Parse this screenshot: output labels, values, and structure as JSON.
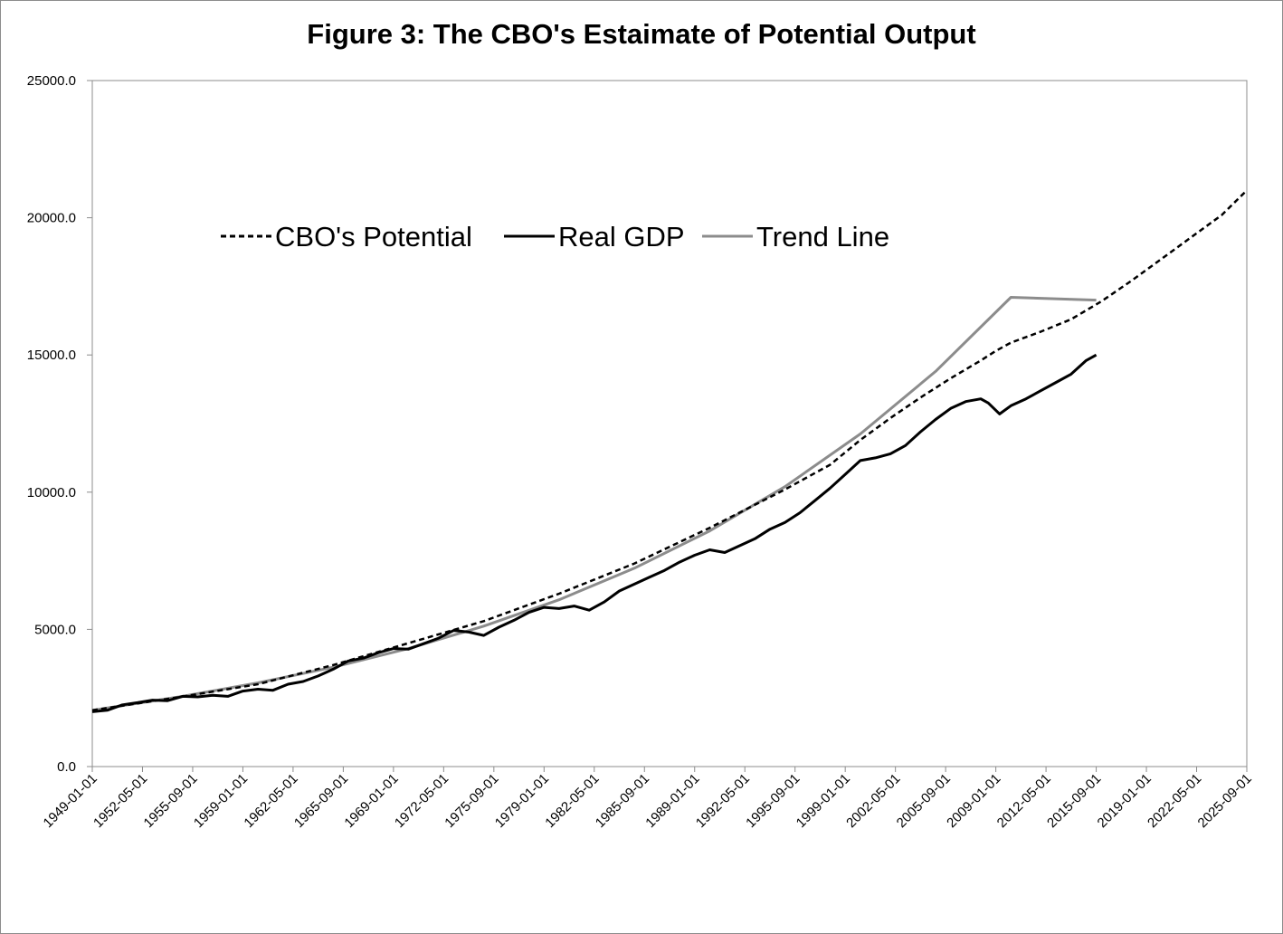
{
  "chart_data": {
    "type": "line",
    "title": "Figure 3: The CBO's Estaimate of Potential Output",
    "xlabel": "",
    "ylabel": "",
    "xlim": [
      "1949-01-01",
      "2025-09-01"
    ],
    "ylim": [
      0,
      25000
    ],
    "y_ticks": [
      "0.0",
      "5000.0",
      "10000.0",
      "15000.0",
      "20000.0",
      "25000.0"
    ],
    "x_ticks": [
      "1949-01-01",
      "1952-05-01",
      "1955-09-01",
      "1959-01-01",
      "1962-05-01",
      "1965-09-01",
      "1969-01-01",
      "1972-05-01",
      "1975-09-01",
      "1979-01-01",
      "1982-05-01",
      "1985-09-01",
      "1989-01-01",
      "1992-05-01",
      "1995-09-01",
      "1999-01-01",
      "2002-05-01",
      "2005-09-01",
      "2009-01-01",
      "2012-05-01",
      "2015-09-01",
      "2019-01-01",
      "2022-05-01",
      "2025-09-01"
    ],
    "grid": false,
    "legend_position": "upper-left",
    "series": [
      {
        "name": "CBO's Potential",
        "style": "dashed",
        "color": "#000000",
        "points": [
          [
            "1949-01-01",
            2050
          ],
          [
            "1955-01-01",
            2550
          ],
          [
            "1960-01-01",
            3000
          ],
          [
            "1965-01-01",
            3700
          ],
          [
            "1970-01-01",
            4500
          ],
          [
            "1975-01-01",
            5300
          ],
          [
            "1980-01-01",
            6300
          ],
          [
            "1985-01-01",
            7400
          ],
          [
            "1990-01-01",
            8700
          ],
          [
            "1995-01-01",
            10100
          ],
          [
            "1998-01-01",
            11000
          ],
          [
            "2000-01-01",
            11900
          ],
          [
            "2002-01-01",
            12700
          ],
          [
            "2004-01-01",
            13450
          ],
          [
            "2006-01-01",
            14150
          ],
          [
            "2008-01-01",
            14800
          ],
          [
            "2009-01-01",
            15150
          ],
          [
            "2010-01-01",
            15450
          ],
          [
            "2012-01-01",
            15850
          ],
          [
            "2014-01-01",
            16300
          ],
          [
            "2016-01-01",
            16950
          ],
          [
            "2018-01-01",
            17700
          ],
          [
            "2020-01-01",
            18500
          ],
          [
            "2022-01-01",
            19300
          ],
          [
            "2024-01-01",
            20100
          ],
          [
            "2025-09-01",
            21000
          ]
        ]
      },
      {
        "name": "Real GDP",
        "style": "solid",
        "color": "#000000",
        "points": [
          [
            "1949-01-01",
            2000
          ],
          [
            "1950-01-01",
            2050
          ],
          [
            "1951-01-01",
            2250
          ],
          [
            "1952-01-01",
            2330
          ],
          [
            "1953-01-01",
            2420
          ],
          [
            "1954-01-01",
            2400
          ],
          [
            "1955-01-01",
            2560
          ],
          [
            "1956-01-01",
            2540
          ],
          [
            "1957-01-01",
            2600
          ],
          [
            "1958-01-01",
            2560
          ],
          [
            "1959-01-01",
            2750
          ],
          [
            "1960-01-01",
            2820
          ],
          [
            "1961-01-01",
            2780
          ],
          [
            "1962-01-01",
            3000
          ],
          [
            "1963-01-01",
            3100
          ],
          [
            "1964-01-01",
            3300
          ],
          [
            "1965-01-01",
            3550
          ],
          [
            "1966-01-01",
            3850
          ],
          [
            "1967-01-01",
            3950
          ],
          [
            "1968-01-01",
            4150
          ],
          [
            "1969-01-01",
            4300
          ],
          [
            "1970-01-01",
            4280
          ],
          [
            "1971-01-01",
            4480
          ],
          [
            "1972-01-01",
            4680
          ],
          [
            "1973-01-01",
            4960
          ],
          [
            "1974-01-01",
            4900
          ],
          [
            "1975-01-01",
            4780
          ],
          [
            "1976-01-01",
            5080
          ],
          [
            "1977-01-01",
            5330
          ],
          [
            "1978-01-01",
            5620
          ],
          [
            "1979-01-01",
            5800
          ],
          [
            "1980-01-01",
            5760
          ],
          [
            "1981-01-01",
            5850
          ],
          [
            "1982-01-01",
            5700
          ],
          [
            "1983-01-01",
            6000
          ],
          [
            "1984-01-01",
            6400
          ],
          [
            "1985-01-01",
            6650
          ],
          [
            "1986-01-01",
            6900
          ],
          [
            "1987-01-01",
            7150
          ],
          [
            "1988-01-01",
            7450
          ],
          [
            "1989-01-01",
            7700
          ],
          [
            "1990-01-01",
            7900
          ],
          [
            "1991-01-01",
            7800
          ],
          [
            "1992-01-01",
            8050
          ],
          [
            "1993-01-01",
            8300
          ],
          [
            "1994-01-01",
            8650
          ],
          [
            "1995-01-01",
            8900
          ],
          [
            "1996-01-01",
            9250
          ],
          [
            "1997-01-01",
            9700
          ],
          [
            "1998-01-01",
            10150
          ],
          [
            "1999-01-01",
            10650
          ],
          [
            "2000-01-01",
            11150
          ],
          [
            "2001-01-01",
            11250
          ],
          [
            "2002-01-01",
            11400
          ],
          [
            "2003-01-01",
            11700
          ],
          [
            "2004-01-01",
            12200
          ],
          [
            "2005-01-01",
            12650
          ],
          [
            "2006-01-01",
            13050
          ],
          [
            "2007-01-01",
            13300
          ],
          [
            "2008-01-01",
            13400
          ],
          [
            "2008-07-01",
            13250
          ],
          [
            "2009-04-01",
            12850
          ],
          [
            "2010-01-01",
            13150
          ],
          [
            "2011-01-01",
            13400
          ],
          [
            "2012-01-01",
            13700
          ],
          [
            "2013-01-01",
            14000
          ],
          [
            "2014-01-01",
            14300
          ],
          [
            "2015-01-01",
            14800
          ],
          [
            "2015-09-01",
            15000
          ]
        ]
      },
      {
        "name": "Trend Line",
        "style": "solid",
        "color": "#8c8c8c",
        "points": [
          [
            "1949-01-01",
            2050
          ],
          [
            "1955-01-01",
            2560
          ],
          [
            "1960-01-01",
            3050
          ],
          [
            "1965-01-01",
            3620
          ],
          [
            "1970-01-01",
            4300
          ],
          [
            "1975-01-01",
            5120
          ],
          [
            "1980-01-01",
            6080
          ],
          [
            "1985-01-01",
            7230
          ],
          [
            "1990-01-01",
            8590
          ],
          [
            "1995-01-01",
            10200
          ],
          [
            "2000-01-01",
            12120
          ],
          [
            "2005-01-01",
            14400
          ],
          [
            "2010-01-01",
            17100
          ],
          [
            "2015-09-01",
            17000
          ]
        ]
      }
    ]
  }
}
